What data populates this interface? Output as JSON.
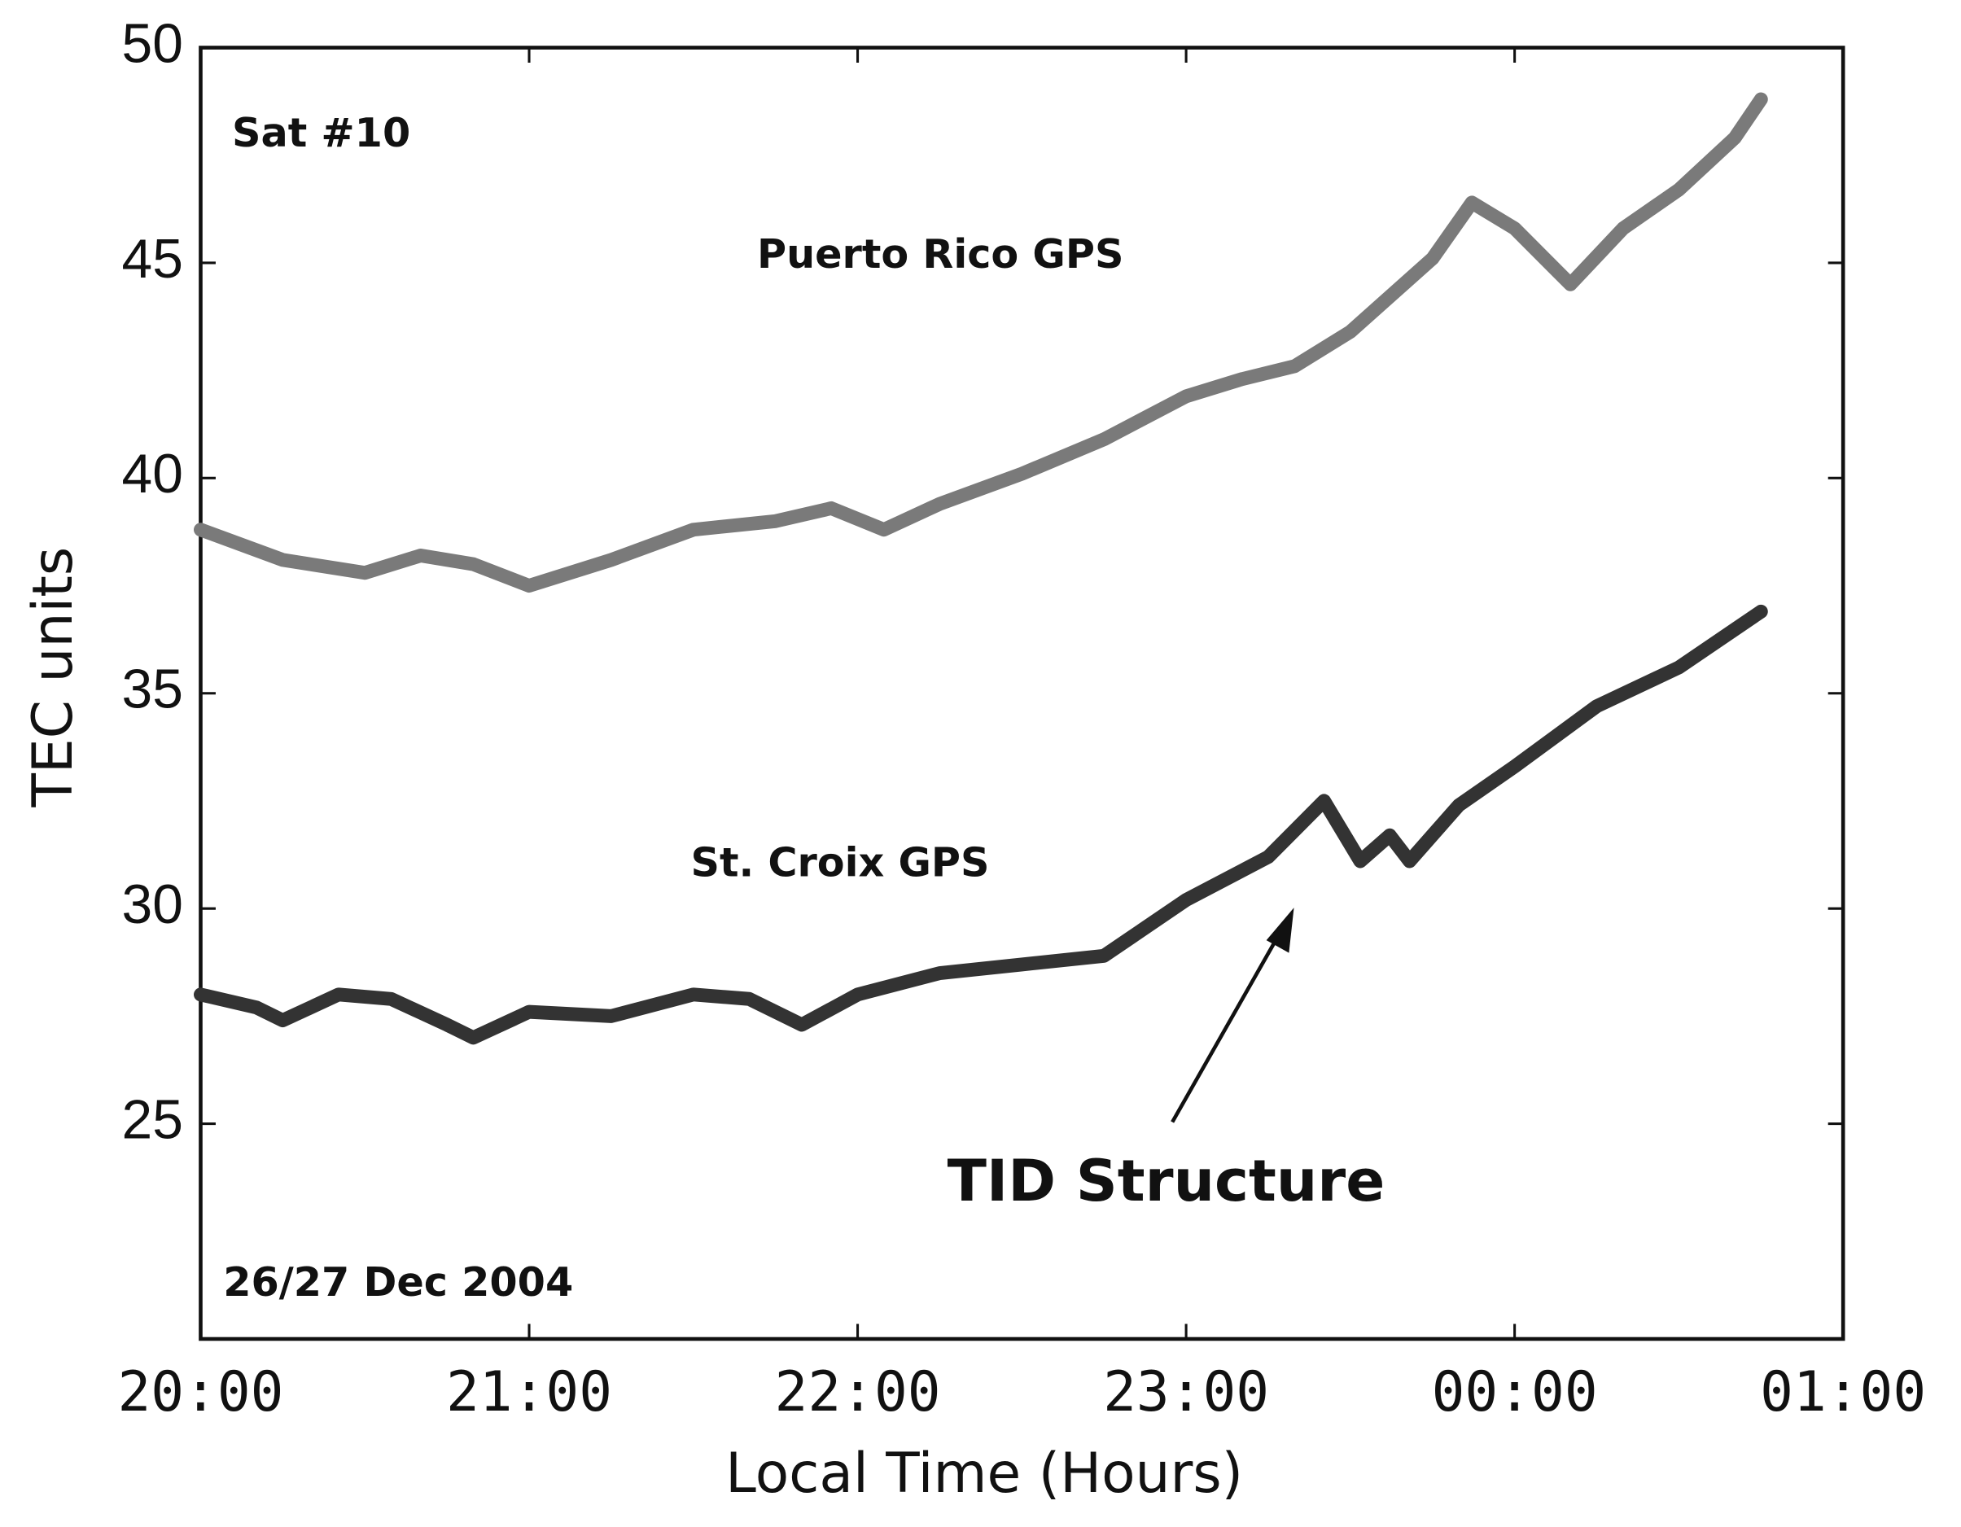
{
  "chart_data": {
    "type": "line",
    "x_label": "Local Time (Hours)",
    "y_label": "TEC units",
    "annotations": [
      "Sat #10",
      "Puerto Rico GPS",
      "St. Croix GPS",
      "TID Structure",
      "26/27 Dec 2004"
    ],
    "xlim": [
      20,
      25
    ],
    "xticks": [
      {
        "value": 20,
        "label": "20:00"
      },
      {
        "value": 21,
        "label": "21:00"
      },
      {
        "value": 22,
        "label": "22:00"
      },
      {
        "value": 23,
        "label": "23:00"
      },
      {
        "value": 24,
        "label": "00:00"
      },
      {
        "value": 25,
        "label": "01:00"
      }
    ],
    "ylim": [
      20,
      50
    ],
    "yticks": [
      25,
      30,
      35,
      40,
      45,
      50
    ],
    "series": [
      {
        "name": "Puerto Rico GPS",
        "color": "#7a7a7a",
        "x": [
          20,
          20.25,
          20.5,
          20.67,
          20.83,
          21,
          21.25,
          21.5,
          21.75,
          21.92,
          22.08,
          22.25,
          22.5,
          22.75,
          23,
          23.17,
          23.33,
          23.5,
          23.75,
          23.87,
          24,
          24.17,
          24.33,
          24.5,
          24.67,
          24.75
        ],
        "values": [
          38.8,
          38.1,
          37.8,
          38.2,
          38.0,
          37.5,
          38.1,
          38.8,
          39.0,
          39.3,
          38.8,
          39.4,
          40.1,
          40.9,
          41.9,
          42.3,
          42.6,
          43.4,
          45.1,
          46.4,
          45.8,
          44.5,
          45.8,
          46.7,
          47.9,
          48.8
        ]
      },
      {
        "name": "St. Croix GPS",
        "color": "#333333",
        "x": [
          20,
          20.17,
          20.25,
          20.42,
          20.58,
          20.75,
          20.83,
          21,
          21.25,
          21.5,
          21.67,
          21.83,
          22,
          22.25,
          22.5,
          22.75,
          23,
          23.25,
          23.42,
          23.53,
          23.62,
          23.68,
          23.83,
          24,
          24.25,
          24.5,
          24.75
        ],
        "values": [
          28.0,
          27.7,
          27.4,
          28.0,
          27.9,
          27.3,
          27.0,
          27.6,
          27.5,
          28.0,
          27.9,
          27.3,
          28.0,
          28.5,
          28.7,
          28.9,
          30.2,
          31.2,
          32.5,
          31.1,
          31.7,
          31.1,
          32.4,
          33.3,
          34.7,
          35.6,
          36.9
        ]
      }
    ]
  }
}
